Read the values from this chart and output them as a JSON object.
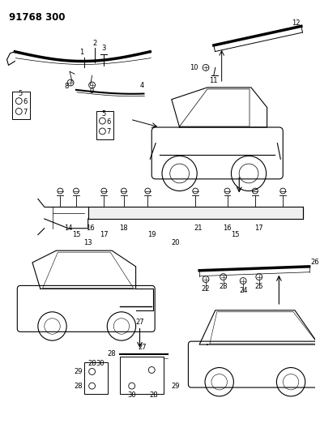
{
  "title": "91768 300",
  "bg_color": "#ffffff",
  "fig_width": 3.95,
  "fig_height": 5.33,
  "dpi": 100,
  "title_fontsize": 8.5,
  "label_fontsize": 6.0
}
